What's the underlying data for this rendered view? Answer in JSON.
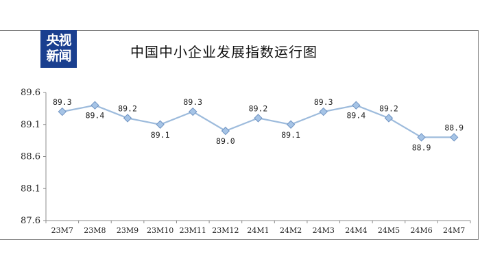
{
  "logo": {
    "line1": "央视",
    "line2": "新闻"
  },
  "chart_data": {
    "type": "line",
    "title": "中国中小企业发展指数运行图",
    "categories": [
      "23M7",
      "23M8",
      "23M9",
      "23M10",
      "23M11",
      "23M12",
      "24M1",
      "24M2",
      "24M3",
      "24M4",
      "24M5",
      "24M6",
      "24M7"
    ],
    "values": [
      89.3,
      89.4,
      89.2,
      89.1,
      89.3,
      89.0,
      89.2,
      89.1,
      89.3,
      89.4,
      89.2,
      88.9,
      88.9
    ],
    "data_labels": [
      "89.3",
      "89.4",
      "89.2",
      "89.1",
      "89.3",
      "89.0",
      "89.2",
      "89.1",
      "89.3",
      "89.4",
      "89.2",
      "88.9",
      "88.9"
    ],
    "label_positions": [
      "above",
      "below",
      "above",
      "below",
      "above",
      "below",
      "above",
      "below",
      "above",
      "below",
      "above",
      "below",
      "above"
    ],
    "y_ticks": [
      "87.6",
      "88.1",
      "88.6",
      "89.1",
      "89.6"
    ],
    "ylim": [
      87.6,
      89.6
    ],
    "grid": false,
    "legend": "none",
    "line_color": "#9dbbdc",
    "marker_color": "#a6c4e6",
    "marker_stroke": "#6f93c2"
  }
}
